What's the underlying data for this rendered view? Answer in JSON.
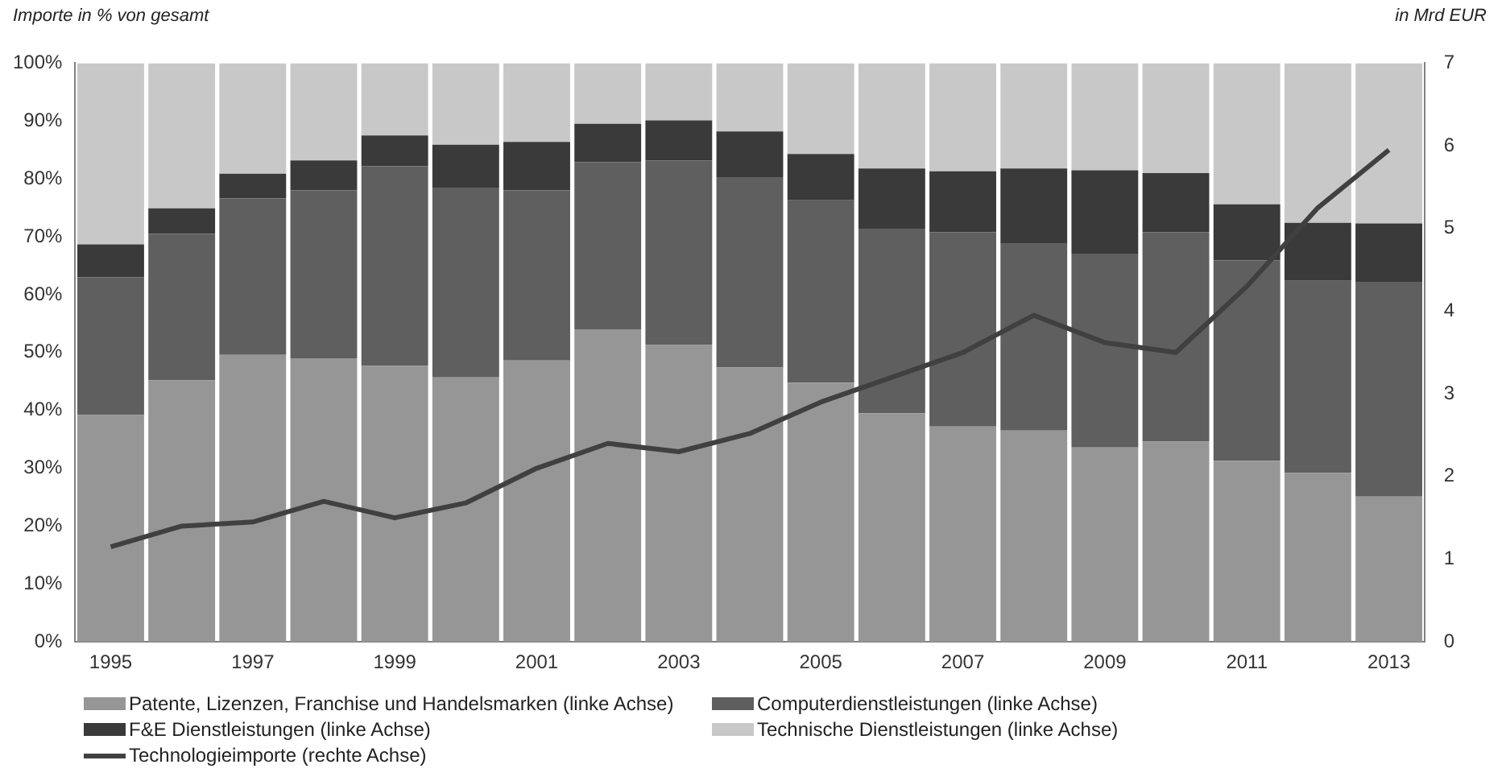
{
  "chart_data": {
    "type": "bar",
    "stacked": true,
    "ylabel": "Importe in % von gesamt",
    "y2label": "in Mrd EUR",
    "categories": [
      "1995",
      null,
      "1997",
      null,
      "1999",
      null,
      "2001",
      null,
      "2003",
      null,
      "2005",
      null,
      "2007",
      null,
      "2009",
      null,
      "2011",
      null,
      "2013"
    ],
    "series": [
      {
        "name": "Patente, Lizenzen, Franchise und Handelsmarken (linke Achse)",
        "color": "#969696",
        "values": [
          39.2,
          45.2,
          49.6,
          49,
          47.7,
          45.7,
          48.6,
          54,
          51.3,
          47.4,
          44.8,
          39.5,
          37.2,
          36.5,
          33.6,
          34.6,
          31.3,
          29.2,
          25.1
        ]
      },
      {
        "name": "Computerdienstleistungen (linke Achse)",
        "color": "#5f5f5f",
        "values": [
          23.8,
          25.3,
          27.0,
          29.0,
          34.5,
          32.8,
          29.4,
          28.9,
          31.9,
          32.9,
          31.5,
          31.9,
          33.6,
          32.4,
          33.5,
          36.2,
          34.6,
          33.2,
          37.1
        ]
      },
      {
        "name": "F&E Dienstleistungen (linke Achse)",
        "color": "#3a3a3a",
        "values": [
          5.7,
          4.4,
          4.3,
          5.2,
          5.3,
          7.4,
          8.4,
          6.6,
          6.9,
          7.9,
          8.0,
          10.4,
          10.5,
          12.9,
          14.4,
          10.2,
          9.7,
          10.0,
          10.1
        ]
      },
      {
        "name": "Technische Dienstleistungen (linke Achse)",
        "color": "#c8c8c8",
        "values": [
          31.3,
          25.1,
          19.1,
          16.8,
          12.5,
          14.1,
          13.6,
          10.5,
          9.9,
          11.8,
          15.7,
          18.2,
          18.7,
          18.2,
          18.5,
          19.0,
          24.4,
          27.6,
          27.7
        ]
      },
      {
        "name": "Technologieimporte (rechte Achse)",
        "type": "line",
        "axis": "y2",
        "color": "#404040",
        "values": [
          1.15,
          1.4,
          1.45,
          1.7,
          1.5,
          1.68,
          2.1,
          2.4,
          2.3,
          2.52,
          2.9,
          3.2,
          3.5,
          3.95,
          3.62,
          3.5,
          4.3,
          5.25,
          5.95
        ]
      }
    ],
    "ylim": [
      0,
      100
    ],
    "yticks": [
      {
        "value": 0,
        "label": "0%"
      },
      {
        "value": 10,
        "label": "10%"
      },
      {
        "value": 20,
        "label": "20%"
      },
      {
        "value": 30,
        "label": "30%"
      },
      {
        "value": 40,
        "label": "40%"
      },
      {
        "value": 50,
        "label": "50%"
      },
      {
        "value": 60,
        "label": "60%"
      },
      {
        "value": 70,
        "label": "70%"
      },
      {
        "value": 80,
        "label": "80%"
      },
      {
        "value": 90,
        "label": "90%"
      },
      {
        "value": 100,
        "label": "100%"
      }
    ],
    "y2lim": [
      0,
      7
    ],
    "y2ticks": [
      0,
      1,
      2,
      3,
      4,
      5,
      6,
      7
    ],
    "grid": false,
    "legend": "bottom",
    "marker": "none"
  }
}
